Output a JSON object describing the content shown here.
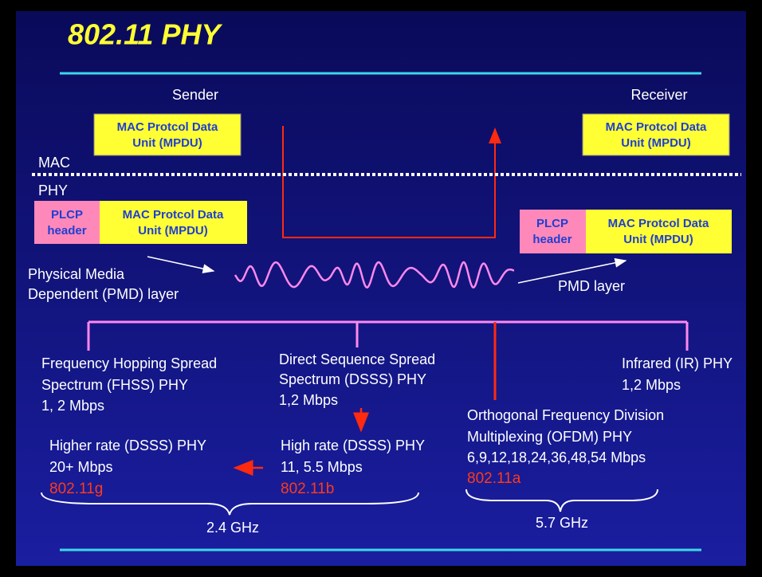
{
  "header": {
    "title": "802.11 PHY"
  },
  "sender": {
    "label": "Sender",
    "mpdu": [
      "MAC Protcol Data",
      "Unit (MPDU)"
    ]
  },
  "receiver": {
    "label": "Receiver",
    "mpdu": [
      "MAC Protcol Data",
      "Unit (MPDU)"
    ]
  },
  "layers": {
    "mac": "MAC",
    "phy": "PHY"
  },
  "sender_frame": {
    "plcp": [
      "PLCP",
      "header"
    ],
    "mpdu": [
      "MAC Protcol Data",
      "Unit (MPDU)"
    ]
  },
  "receiver_frame": {
    "plcp": [
      "PLCP",
      "header"
    ],
    "mpdu": [
      "MAC Protcol Data",
      "Unit (MPDU)"
    ]
  },
  "pmd": {
    "left": [
      "Physical Media",
      "Dependent (PMD) layer"
    ],
    "right": "PMD layer"
  },
  "phys": {
    "fhss": [
      "Frequency Hopping Spread",
      "Spectrum (FHSS) PHY",
      "1, 2 Mbps"
    ],
    "dsss": [
      "Direct Sequence Spread",
      "Spectrum (DSSS) PHY",
      "1,2 Mbps"
    ],
    "ir": [
      "Infrared (IR) PHY",
      "1,2 Mbps"
    ],
    "ofdm": [
      "Orthogonal Frequency  Division",
      "Multiplexing (OFDM) PHY",
      "6,9,12,18,24,36,48,54 Mbps"
    ],
    "ofdm_std": "802.11a",
    "higher": [
      "Higher rate (DSSS) PHY",
      "20+ Mbps"
    ],
    "higher_std": "802.11g",
    "high": [
      "High rate (DSSS) PHY",
      "11, 5.5 Mbps"
    ],
    "high_std": "802.11b"
  },
  "bands": {
    "low": "2.4 GHz",
    "high": "5.7 GHz"
  }
}
